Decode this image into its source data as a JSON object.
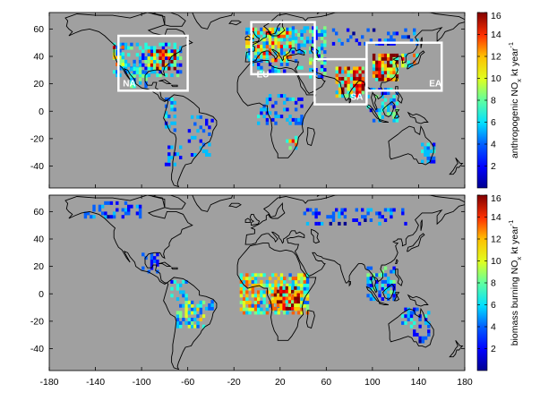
{
  "colors": {
    "ocean_land_background": "#a0a0a0",
    "coastline": "#000000",
    "region_box": "#ffffff",
    "colormap": [
      "#00008f",
      "#0000ff",
      "#0060ff",
      "#00bfff",
      "#20ffdf",
      "#80ff80",
      "#dfff20",
      "#ffbf00",
      "#ff6000",
      "#ff0000",
      "#bf0000",
      "#800000"
    ]
  },
  "panels": [
    {
      "id": "anthropogenic",
      "colorbar": {
        "label_main": "anthropogenic NO",
        "label_sub": "x",
        "label_tail": " kt year",
        "label_sup": "-1",
        "ticks": [
          "2",
          "4",
          "6",
          "8",
          "10",
          "12",
          "14",
          "16"
        ],
        "range": [
          0,
          16
        ]
      },
      "y_ticks": [
        "60",
        "40",
        "20",
        "0",
        "-20",
        "-40"
      ],
      "regions": [
        {
          "label": "NA",
          "lon": [
            -120,
            -60
          ],
          "lat": [
            15,
            55
          ]
        },
        {
          "label": "EU",
          "lon": [
            -5,
            50
          ],
          "lat": [
            27,
            65
          ]
        },
        {
          "label": "SA",
          "lon": [
            50,
            95
          ],
          "lat": [
            5,
            38
          ]
        },
        {
          "label": "EA",
          "lon": [
            95,
            160
          ],
          "lat": [
            15,
            50
          ]
        }
      ]
    },
    {
      "id": "biomass",
      "colorbar": {
        "label_main": "biomass burning NO",
        "label_sub": "x",
        "label_tail": " kt year",
        "label_sup": "-1",
        "ticks": [
          "2",
          "4",
          "6",
          "8",
          "10",
          "12",
          "14",
          "16"
        ],
        "range": [
          0,
          16
        ]
      },
      "y_ticks": [
        "60",
        "40",
        "20",
        "0",
        "-20",
        "-40"
      ],
      "regions": []
    }
  ],
  "x_ticks": [
    "-180",
    "-140",
    "-100",
    "-60",
    "-20",
    "20",
    "60",
    "100",
    "140",
    "180"
  ]
}
